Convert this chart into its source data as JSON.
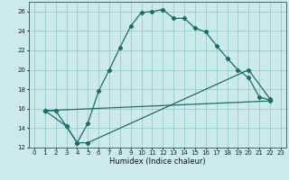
{
  "xlabel": "Humidex (Indice chaleur)",
  "bg_color": "#cceaea",
  "grid_color": "#99cccc",
  "line_color": "#1a6e6a",
  "xlim": [
    -0.5,
    23.5
  ],
  "ylim": [
    12,
    27
  ],
  "xticks": [
    0,
    1,
    2,
    3,
    4,
    5,
    6,
    7,
    8,
    9,
    10,
    11,
    12,
    13,
    14,
    15,
    16,
    17,
    18,
    19,
    20,
    21,
    22,
    23
  ],
  "yticks": [
    12,
    14,
    16,
    18,
    20,
    22,
    24,
    26
  ],
  "line1_x": [
    1,
    2,
    3,
    4,
    5,
    6,
    7,
    8,
    9,
    10,
    11,
    12,
    13,
    14,
    15,
    16,
    17,
    18,
    19,
    20,
    21,
    22
  ],
  "line1_y": [
    15.8,
    15.8,
    14.2,
    12.5,
    14.5,
    17.8,
    20.0,
    22.3,
    24.5,
    25.9,
    26.0,
    26.2,
    25.3,
    25.3,
    24.3,
    23.9,
    22.5,
    21.2,
    20.0,
    19.2,
    17.2,
    16.9
  ],
  "line2_x": [
    1,
    3,
    4,
    5,
    20,
    22
  ],
  "line2_y": [
    15.8,
    14.2,
    12.5,
    12.5,
    20.0,
    17.0
  ],
  "line3_x": [
    1,
    22
  ],
  "line3_y": [
    15.8,
    16.8
  ],
  "tick_fontsize": 5.0,
  "xlabel_fontsize": 6.0,
  "marker_size": 2.2,
  "linewidth": 0.9
}
